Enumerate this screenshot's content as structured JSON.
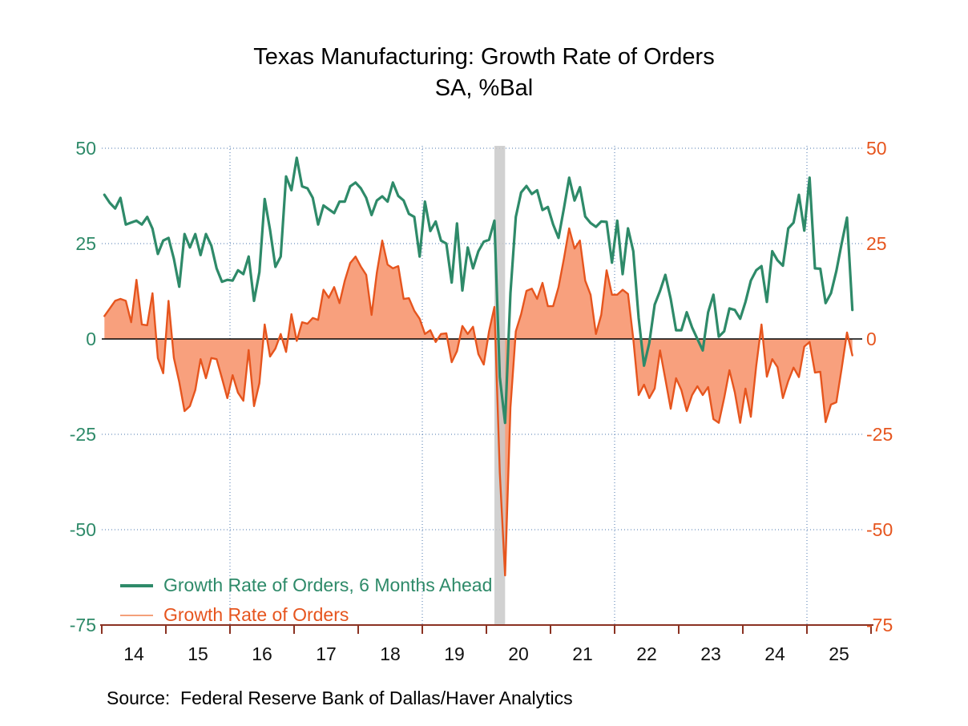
{
  "title": {
    "line1": "Texas Manufacturing: Growth Rate of Orders",
    "line2": "SA, %Bal"
  },
  "source": "Source:  Federal Reserve Bank of Dallas/Haver Analytics",
  "legend": {
    "items": [
      {
        "label": "Growth Rate of Orders, 6 Months Ahead",
        "swatch_color": "#2e8a69",
        "text_color": "#2e8a69",
        "swatch_weight": 4
      },
      {
        "label": "Growth Rate of Orders",
        "swatch_color": "#f4a07a",
        "text_color": "#e6551e",
        "swatch_weight": 2
      }
    ]
  },
  "axes": {
    "y_values": [
      50,
      25,
      0,
      -25,
      -50,
      -75
    ],
    "left_labels": [
      "50",
      "25",
      "0",
      "-25",
      "-50",
      "-75"
    ],
    "right_labels": [
      "50",
      "25",
      "0",
      "-25",
      "-50",
      "-75"
    ],
    "x_labels": [
      "14",
      "15",
      "16",
      "17",
      "18",
      "19",
      "20",
      "21",
      "22",
      "23",
      "24",
      "25"
    ]
  },
  "colors": {
    "future_line": "#2e8a69",
    "current_line": "#e6551e",
    "current_fill": "#f8a07d",
    "left_axis_text": "#2e8a69",
    "right_axis_text": "#e6551e",
    "gridline": "#4a74ad",
    "zero_line": "#000000",
    "x_axis": "#8b3222",
    "x_tick_text": "#111111",
    "recession_band": "#c9c9c9"
  },
  "chart_data": {
    "type": "line",
    "frequency": "monthly",
    "start": "2014-01",
    "end": "2025-09",
    "title": "Texas Manufacturing: Growth Rate of Orders",
    "subtitle": "SA, %Bal",
    "ylabel": "%Bal",
    "ylim": [
      -75,
      50
    ],
    "ytick_interval": 25,
    "grid_horizontal_values": [
      50,
      25,
      -25,
      -50
    ],
    "grid_vertical_year_starts": [
      2016,
      2019,
      2022,
      2025
    ],
    "recession_band": {
      "start": "2020-02",
      "end": "2020-04"
    },
    "legend_position": "lower-left",
    "series": [
      {
        "name": "Growth Rate of Orders, 6 Months Ahead",
        "style": "line",
        "color": "#2e8a69",
        "values": [
          37.8,
          35.7,
          34.2,
          37,
          30,
          30.5,
          31,
          30,
          32,
          28.9,
          22.3,
          25.8,
          26.5,
          21,
          13.7,
          27.5,
          24,
          27.5,
          22,
          27.5,
          24.5,
          18.5,
          15,
          15.5,
          15.3,
          18,
          17,
          21.6,
          10,
          17.5,
          36.7,
          28.6,
          18.9,
          21.6,
          42.6,
          39,
          47.5,
          40,
          39.5,
          37,
          30,
          35,
          34,
          33,
          36,
          36,
          40,
          41,
          39.5,
          37,
          32.5,
          36.3,
          37.4,
          36,
          41,
          37.5,
          36.3,
          32.8,
          32,
          21.6,
          36,
          28.3,
          30.8,
          25.8,
          25,
          14.8,
          30.3,
          12.7,
          24,
          18.5,
          23,
          25.5,
          26,
          31,
          -10,
          -22,
          12,
          32,
          38.4,
          40.1,
          38,
          39,
          33.8,
          34.6,
          30,
          26.5,
          34.2,
          42.3,
          36.3,
          39.8,
          32.1,
          30.4,
          29.4,
          30.8,
          30.7,
          20,
          31,
          17,
          29,
          23,
          5.5,
          -7,
          -1,
          9,
          12.6,
          16.8,
          10.5,
          2.3,
          2.3,
          7,
          3,
          0,
          -3,
          7,
          11.6,
          0.6,
          2,
          8,
          7.6,
          5.3,
          9.7,
          15.3,
          18,
          19.1,
          9.7,
          23,
          20.6,
          19.2,
          29,
          30.5,
          37.8,
          28.4,
          42.3,
          18.5,
          18.4,
          9.4,
          12,
          17.8,
          25,
          31.8,
          7.6
        ]
      },
      {
        "name": "Growth Rate of Orders",
        "style": "line-fill-to-zero",
        "color": "#e6551e",
        "fill_color": "#f8a07d",
        "values": [
          6,
          8,
          10,
          10.5,
          10,
          4.4,
          15.5,
          3.8,
          3.6,
          12,
          -5,
          -9,
          10,
          -5,
          -11.3,
          -18.9,
          -17.6,
          -13.4,
          -5.3,
          -10.3,
          -5,
          -5.3,
          -10.3,
          -15.5,
          -9.5,
          -14.1,
          -16.2,
          -2.9,
          -17.6,
          -11.6,
          3.8,
          -4.6,
          -2.5,
          1.3,
          -3.4,
          6.5,
          -0.5,
          4.4,
          4,
          5.5,
          5,
          12.9,
          10.8,
          13.6,
          9.4,
          15.3,
          19.9,
          21.6,
          19,
          16.8,
          6.3,
          17.4,
          25.8,
          19.5,
          18.5,
          19.1,
          10.5,
          10.7,
          7.4,
          5.3,
          1.3,
          2.3,
          -0.8,
          1.3,
          1.5,
          -6.1,
          -3.2,
          3.4,
          1.3,
          3.2,
          -4,
          -6.7,
          2,
          8.4,
          -35,
          -62,
          -18,
          2,
          6.5,
          12.6,
          13.2,
          10.5,
          14.7,
          8.6,
          8.6,
          13.6,
          21,
          29,
          23.7,
          25.8,
          15.3,
          11.6,
          1.3,
          6.3,
          18,
          11.6,
          11.6,
          12.9,
          11.8,
          0,
          -14.7,
          -12,
          -15.5,
          -13,
          -3,
          -10.5,
          -18.3,
          -10.3,
          -13.4,
          -18.9,
          -14.7,
          -12.4,
          -14.7,
          -12.6,
          -21,
          -22,
          -15.5,
          -8.2,
          -14,
          -22,
          -13,
          -20.4,
          -7.1,
          3.8,
          -9.9,
          -5.3,
          -7.4,
          -15.5,
          -11,
          -7.5,
          -10,
          -2,
          -0.8,
          -8.8,
          -8.6,
          -21.8,
          -17.2,
          -16.6,
          -7.8,
          1.7,
          -4.3
        ]
      }
    ]
  }
}
